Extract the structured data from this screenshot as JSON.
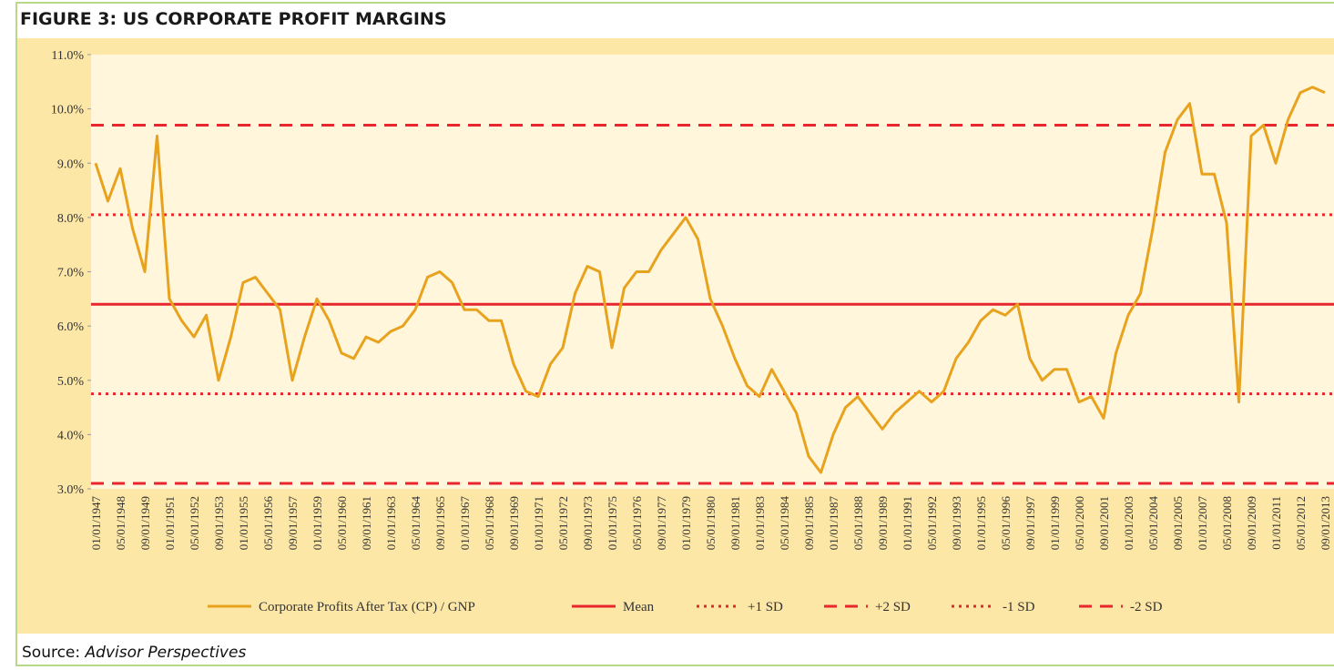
{
  "chart_data": {
    "type": "line",
    "title": "FIGURE 3: US CORPORATE PROFIT MARGINS",
    "source_label": "Source:",
    "source": "Advisor Perspectives",
    "categories": [
      "01/01/1947",
      null,
      "05/01/1948",
      null,
      "09/01/1949",
      null,
      "01/01/1951",
      null,
      "05/01/1952",
      null,
      "09/01/1953",
      null,
      "01/01/1955",
      null,
      "05/01/1956",
      null,
      "09/01/1957",
      null,
      "01/01/1959",
      null,
      "05/01/1960",
      null,
      "09/01/1961",
      null,
      "01/01/1963",
      null,
      "05/01/1964",
      null,
      "09/01/1965",
      null,
      "01/01/1967",
      null,
      "05/01/1968",
      null,
      "09/01/1969",
      null,
      "01/01/1971",
      null,
      "05/01/1972",
      null,
      "09/01/1973",
      null,
      "01/01/1975",
      null,
      "05/01/1976",
      null,
      "09/01/1977",
      null,
      "01/01/1979",
      null,
      "05/01/1980",
      null,
      "09/01/1981",
      null,
      "01/01/1983",
      null,
      "05/01/1984",
      null,
      "09/01/1985",
      null,
      "01/01/1987",
      null,
      "05/01/1988",
      null,
      "09/01/1989",
      null,
      "01/01/1991",
      null,
      "05/01/1992",
      null,
      "09/01/1993",
      null,
      "01/01/1995",
      null,
      "05/01/1996",
      null,
      "09/01/1997",
      null,
      "01/01/1999",
      null,
      "05/01/2000",
      null,
      "09/01/2001",
      null,
      "01/01/2003",
      null,
      "05/01/2004",
      null,
      "09/01/2005",
      null,
      "01/01/2007",
      null,
      "05/01/2008",
      null,
      "09/01/2009",
      null,
      "01/01/2011",
      null,
      "05/01/2012",
      null,
      "09/01/2013"
    ],
    "series": [
      {
        "name": "Corporate Profits After Tax (CP) / GNP",
        "color": "#e8a31e",
        "values": [
          9.0,
          8.3,
          8.9,
          7.8,
          7.0,
          9.5,
          6.5,
          6.1,
          5.8,
          6.2,
          5.0,
          5.8,
          6.8,
          6.9,
          6.6,
          6.3,
          5.0,
          5.8,
          6.5,
          6.1,
          5.5,
          5.4,
          5.8,
          5.7,
          5.9,
          6.0,
          6.3,
          6.9,
          7.0,
          6.8,
          6.3,
          6.3,
          6.1,
          6.1,
          5.3,
          4.8,
          4.7,
          5.3,
          5.6,
          6.6,
          7.1,
          7.0,
          5.6,
          6.7,
          7.0,
          7.0,
          7.4,
          7.7,
          8.0,
          7.6,
          6.5,
          6.0,
          5.4,
          4.9,
          4.7,
          5.2,
          4.8,
          4.4,
          3.6,
          3.3,
          4.0,
          4.5,
          4.7,
          4.4,
          4.1,
          4.4,
          4.6,
          4.8,
          4.6,
          4.8,
          5.4,
          5.7,
          6.1,
          6.3,
          6.2,
          6.4,
          5.4,
          5.0,
          5.2,
          5.2,
          4.6,
          4.7,
          4.3,
          5.5,
          6.2,
          6.6,
          7.8,
          9.2,
          9.8,
          10.1,
          8.8,
          8.8,
          7.9,
          4.6,
          9.5,
          9.7,
          9.0,
          9.8,
          10.3,
          10.4,
          10.3
        ]
      }
    ],
    "reference_lines": [
      {
        "name": "Mean",
        "value": 6.4,
        "color": "#e8262d",
        "dash": "solid"
      },
      {
        "name": "+1 SD",
        "value": 8.05,
        "color": "#e8262d",
        "dash": "dotted"
      },
      {
        "name": "+2 SD",
        "value": 9.7,
        "color": "#e8262d",
        "dash": "dashed"
      },
      {
        "name": "-1 SD",
        "value": 4.75,
        "color": "#e8262d",
        "dash": "dotted"
      },
      {
        "name": "-2 SD",
        "value": 3.1,
        "color": "#e8262d",
        "dash": "dashed"
      }
    ],
    "ylim": [
      3,
      11
    ],
    "yticks": [
      {
        "value": 3,
        "label": "3.0%"
      },
      {
        "value": 4,
        "label": "4.0%"
      },
      {
        "value": 5,
        "label": "5.0%"
      },
      {
        "value": 6,
        "label": "6.0%"
      },
      {
        "value": 7,
        "label": "7.0%"
      },
      {
        "value": 8,
        "label": "8.0%"
      },
      {
        "value": 9,
        "label": "9.0%"
      },
      {
        "value": 10,
        "label": "10.0%"
      },
      {
        "value": 11,
        "label": "11.0%"
      }
    ],
    "legend": "bottom"
  }
}
